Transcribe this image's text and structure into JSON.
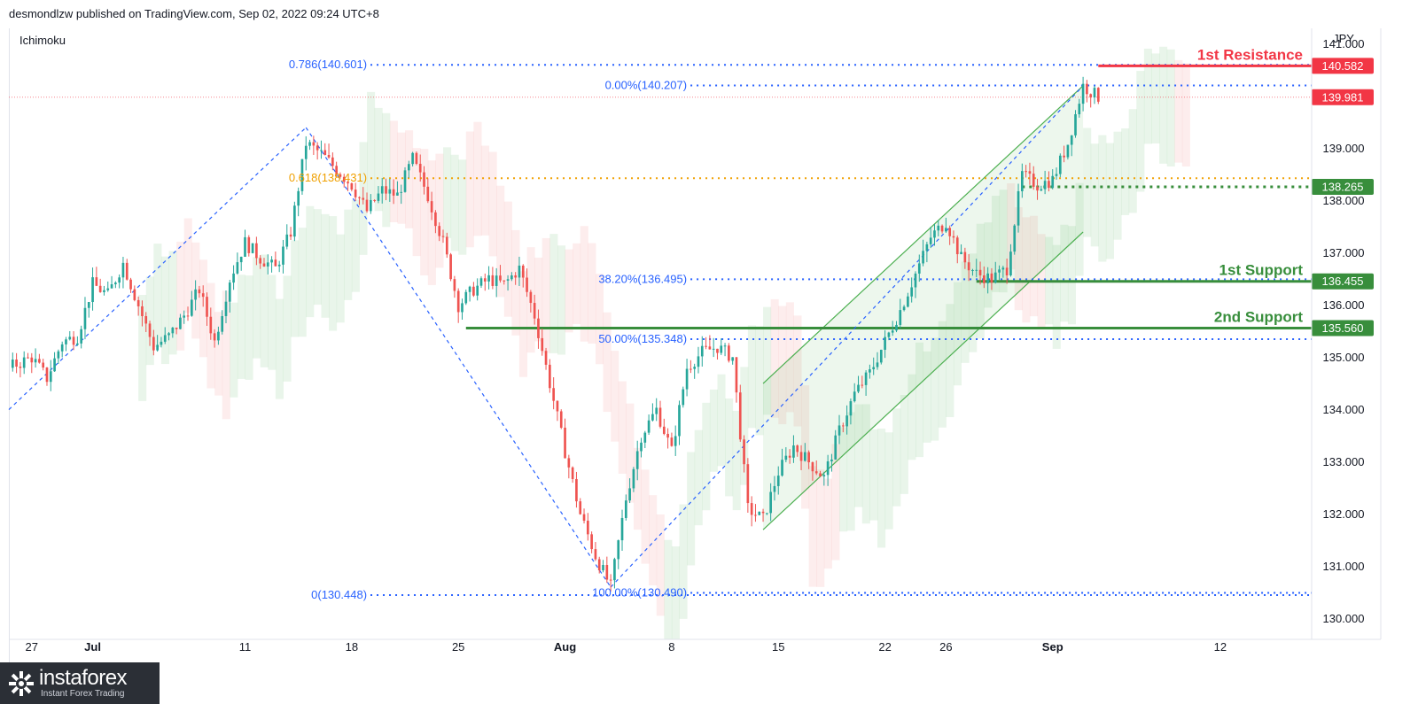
{
  "header": {
    "published": "desmondlzw published on TradingView.com, Sep 02, 2022 09:24 UTC+8",
    "indicator": "Ichimoku"
  },
  "logo": {
    "name": "instaforex",
    "tagline": "Instant Forex Trading",
    "watermark": "TradingView"
  },
  "colors": {
    "up": "#26a69a",
    "down": "#ef5350",
    "fib_blue": "#2962ff",
    "fib_orange": "#f0a000",
    "resistance": "#f23645",
    "support": "#388e3c",
    "channel": "#4caf50",
    "price": "#f23645"
  },
  "chart_data": {
    "type": "candlestick",
    "symbol_currency": "JPY",
    "y_axis": {
      "label": "JPY",
      "ticks": [
        "130.000",
        "131.000",
        "132.000",
        "133.000",
        "134.000",
        "135.000",
        "136.000",
        "137.000",
        "138.000",
        "139.000",
        "141.000"
      ],
      "range": [
        129.6,
        141.3
      ]
    },
    "x_axis": {
      "ticks": [
        {
          "label": "27",
          "x": 0
        },
        {
          "label": "Jul",
          "x": 4
        },
        {
          "label": "11",
          "x": 14
        },
        {
          "label": "18",
          "x": 21
        },
        {
          "label": "25",
          "x": 28
        },
        {
          "label": "Aug",
          "x": 35
        },
        {
          "label": "8",
          "x": 42
        },
        {
          "label": "15",
          "x": 49
        },
        {
          "label": "22",
          "x": 56
        },
        {
          "label": "26",
          "x": 60
        },
        {
          "label": "Sep",
          "x": 67
        },
        {
          "label": "12",
          "x": 78
        }
      ],
      "range": [
        -1.5,
        84
      ]
    },
    "close_path": [
      [
        -1.5,
        134.8
      ],
      [
        0,
        135.0
      ],
      [
        1,
        134.6
      ],
      [
        2,
        135.3
      ],
      [
        3,
        135.4
      ],
      [
        4,
        136.4
      ],
      [
        5,
        136.2
      ],
      [
        6,
        136.8
      ],
      [
        7,
        136.0
      ],
      [
        8,
        135.2
      ],
      [
        9,
        135.4
      ],
      [
        10,
        135.8
      ],
      [
        11,
        136.3
      ],
      [
        12,
        135.3
      ],
      [
        13,
        136.5
      ],
      [
        14,
        137.2
      ],
      [
        15,
        136.9
      ],
      [
        16,
        136.7
      ],
      [
        17,
        137.4
      ],
      [
        18,
        139.1
      ],
      [
        19,
        138.9
      ],
      [
        20,
        138.6
      ],
      [
        21,
        138.3
      ],
      [
        22,
        137.8
      ],
      [
        23,
        138.2
      ],
      [
        24,
        138.1
      ],
      [
        25,
        138.8
      ],
      [
        26,
        138.1
      ],
      [
        27,
        137.2
      ],
      [
        28,
        136.0
      ],
      [
        29,
        136.3
      ],
      [
        30,
        136.5
      ],
      [
        31,
        136.4
      ],
      [
        32,
        136.7
      ],
      [
        33,
        135.8
      ],
      [
        34,
        134.5
      ],
      [
        35,
        133.2
      ],
      [
        36,
        132.0
      ],
      [
        37,
        131.2
      ],
      [
        38,
        130.6
      ],
      [
        39,
        132.3
      ],
      [
        40,
        133.5
      ],
      [
        41,
        134.0
      ],
      [
        42,
        133.2
      ],
      [
        43,
        134.8
      ],
      [
        44,
        135.1
      ],
      [
        45,
        135.2
      ],
      [
        46,
        135.0
      ],
      [
        47,
        132.1
      ],
      [
        48,
        131.9
      ],
      [
        49,
        132.8
      ],
      [
        50,
        133.3
      ],
      [
        51,
        133.0
      ],
      [
        52,
        132.7
      ],
      [
        53,
        133.6
      ],
      [
        54,
        134.3
      ],
      [
        55,
        134.7
      ],
      [
        56,
        135.3
      ],
      [
        57,
        135.9
      ],
      [
        58,
        136.6
      ],
      [
        59,
        137.3
      ],
      [
        60,
        137.6
      ],
      [
        61,
        136.9
      ],
      [
        62,
        136.6
      ],
      [
        63,
        136.5
      ],
      [
        64,
        136.7
      ],
      [
        65,
        138.5
      ],
      [
        66,
        138.3
      ],
      [
        67,
        138.4
      ],
      [
        68,
        139.1
      ],
      [
        69,
        140.2
      ],
      [
        70,
        139.98
      ]
    ],
    "fib_levels": [
      {
        "label": "0.786(140.601)",
        "price": 140.601,
        "color": "blue"
      },
      {
        "label": "0.00%(140.207)",
        "price": 140.207,
        "color": "blue"
      },
      {
        "label": "0.618(138.431)",
        "price": 138.431,
        "color": "orange"
      },
      {
        "label": "38.20%(136.495)",
        "price": 136.495,
        "color": "blue"
      },
      {
        "label": "50.00%(135.348)",
        "price": 135.348,
        "color": "blue"
      },
      {
        "label": "0(130.448)",
        "price": 130.448,
        "color": "blue"
      },
      {
        "label": "100.00%(130.490)",
        "price": 130.49,
        "color": "blue"
      }
    ],
    "key_levels": [
      {
        "name": "1st Resistance",
        "price": 140.582,
        "tag": "140.582",
        "kind": "resistance"
      },
      {
        "name": "1st Support",
        "price": 136.455,
        "tag": "136.455",
        "kind": "support"
      },
      {
        "name": "2nd Support",
        "price": 135.56,
        "tag": "135.560",
        "kind": "support"
      }
    ],
    "other_tags": [
      {
        "tag": "139.981",
        "price": 139.981,
        "kind": "last-price"
      },
      {
        "tag": "138.265",
        "price": 138.265,
        "kind": "dotted-support"
      }
    ],
    "channel": {
      "upper": [
        [
          48,
          134.5
        ],
        [
          69,
          140.2
        ]
      ],
      "lower": [
        [
          48,
          131.7
        ],
        [
          69,
          137.4
        ]
      ]
    },
    "zigzag": [
      [
        -1.5,
        134.0
      ],
      [
        18,
        139.4
      ],
      [
        38,
        130.6
      ],
      [
        69,
        140.2
      ]
    ]
  }
}
